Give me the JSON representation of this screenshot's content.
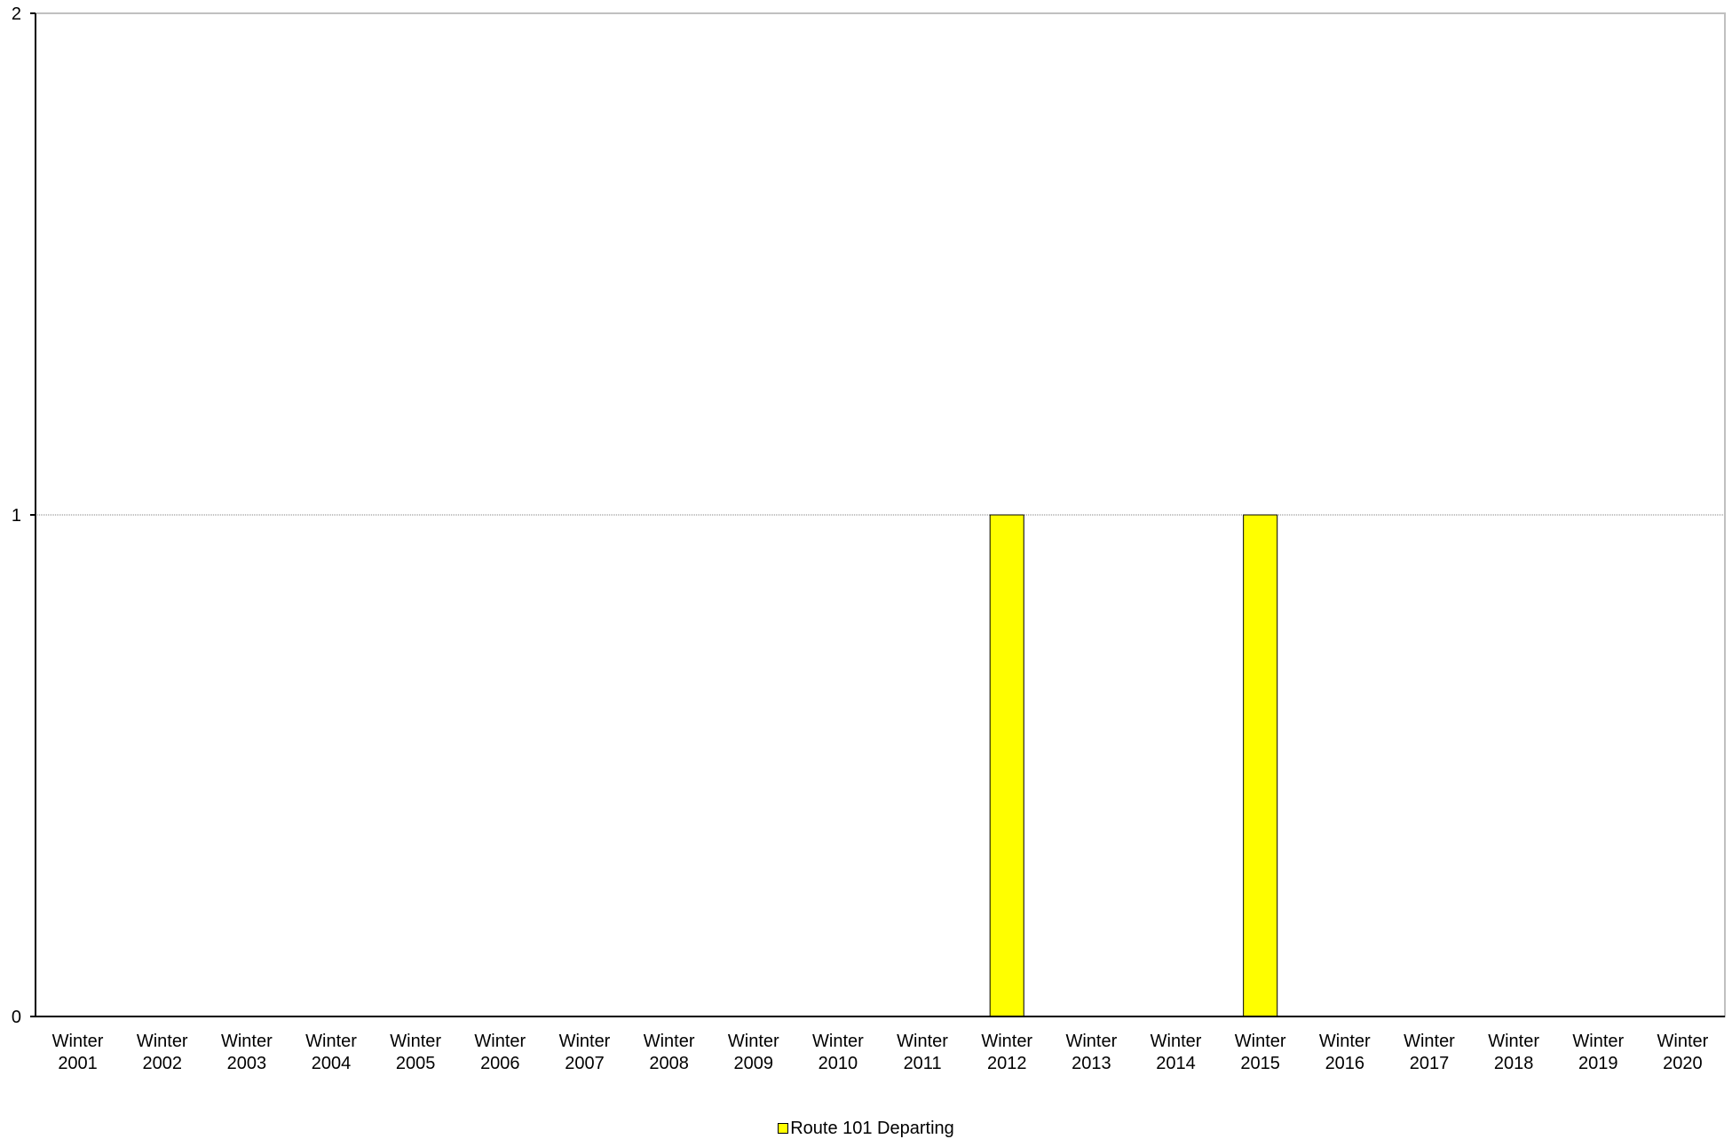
{
  "chart_data": {
    "type": "bar",
    "categories": [
      [
        "Winter",
        "2001"
      ],
      [
        "Winter",
        "2002"
      ],
      [
        "Winter",
        "2003"
      ],
      [
        "Winter",
        "2004"
      ],
      [
        "Winter",
        "2005"
      ],
      [
        "Winter",
        "2006"
      ],
      [
        "Winter",
        "2007"
      ],
      [
        "Winter",
        "2008"
      ],
      [
        "Winter",
        "2009"
      ],
      [
        "Winter",
        "2010"
      ],
      [
        "Winter",
        "2011"
      ],
      [
        "Winter",
        "2012"
      ],
      [
        "Winter",
        "2013"
      ],
      [
        "Winter",
        "2014"
      ],
      [
        "Winter",
        "2015"
      ],
      [
        "Winter",
        "2016"
      ],
      [
        "Winter",
        "2017"
      ],
      [
        "Winter",
        "2018"
      ],
      [
        "Winter",
        "2019"
      ],
      [
        "Winter",
        "2020"
      ]
    ],
    "series": [
      {
        "name": "Route 101 Departing",
        "color": "#ffff00",
        "values": [
          0,
          0,
          0,
          0,
          0,
          0,
          0,
          0,
          0,
          0,
          0,
          1,
          0,
          0,
          1,
          0,
          0,
          0,
          0,
          0
        ]
      }
    ],
    "ylim": [
      0,
      2
    ],
    "yticks": [
      "0",
      "1",
      "2"
    ],
    "grid": "horizontal",
    "legend": "bottom-center",
    "title": "",
    "xlabel": "",
    "ylabel": ""
  },
  "legend": {
    "label": "Route 101 Departing",
    "color": "#ffff00"
  }
}
